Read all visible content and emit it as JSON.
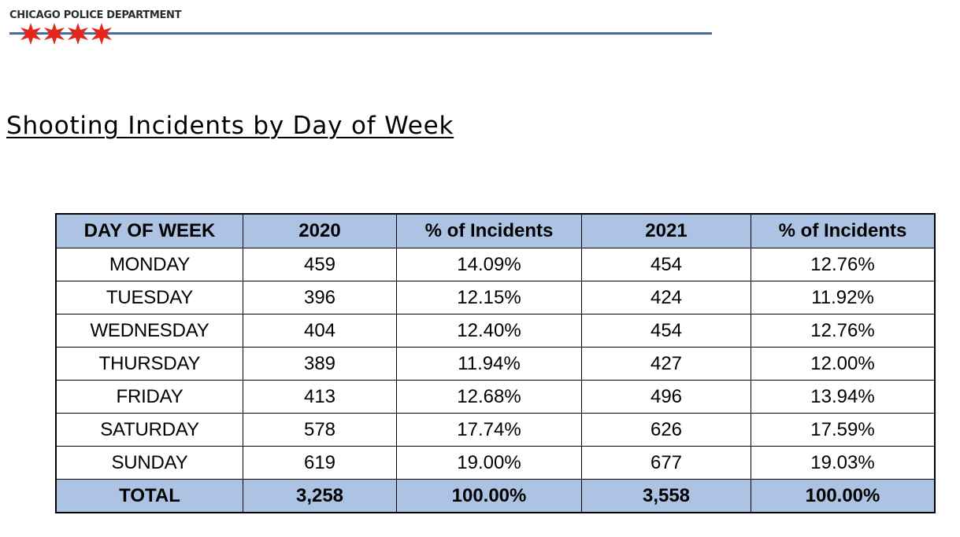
{
  "header": {
    "department": "CHICAGO POLICE DEPARTMENT",
    "logo_icon": "chicago-star-icon",
    "star_color": "#e4261c",
    "rule_color": "#4a6a9a"
  },
  "title": "Shooting Incidents by Day of Week",
  "table": {
    "header_color": "#adc3e3",
    "columns": [
      "DAY OF WEEK",
      "2020",
      "% of Incidents",
      "2021",
      "% of Incidents"
    ],
    "rows": [
      [
        "MONDAY",
        "459",
        "14.09%",
        "454",
        "12.76%"
      ],
      [
        "TUESDAY",
        "396",
        "12.15%",
        "424",
        "11.92%"
      ],
      [
        "WEDNESDAY",
        "404",
        "12.40%",
        "454",
        "12.76%"
      ],
      [
        "THURSDAY",
        "389",
        "11.94%",
        "427",
        "12.00%"
      ],
      [
        "FRIDAY",
        "413",
        "12.68%",
        "496",
        "13.94%"
      ],
      [
        "SATURDAY",
        "578",
        "17.74%",
        "626",
        "17.59%"
      ],
      [
        "SUNDAY",
        "619",
        "19.00%",
        "677",
        "19.03%"
      ]
    ],
    "total": [
      "TOTAL",
      "3,258",
      "100.00%",
      "3,558",
      "100.00%"
    ]
  }
}
